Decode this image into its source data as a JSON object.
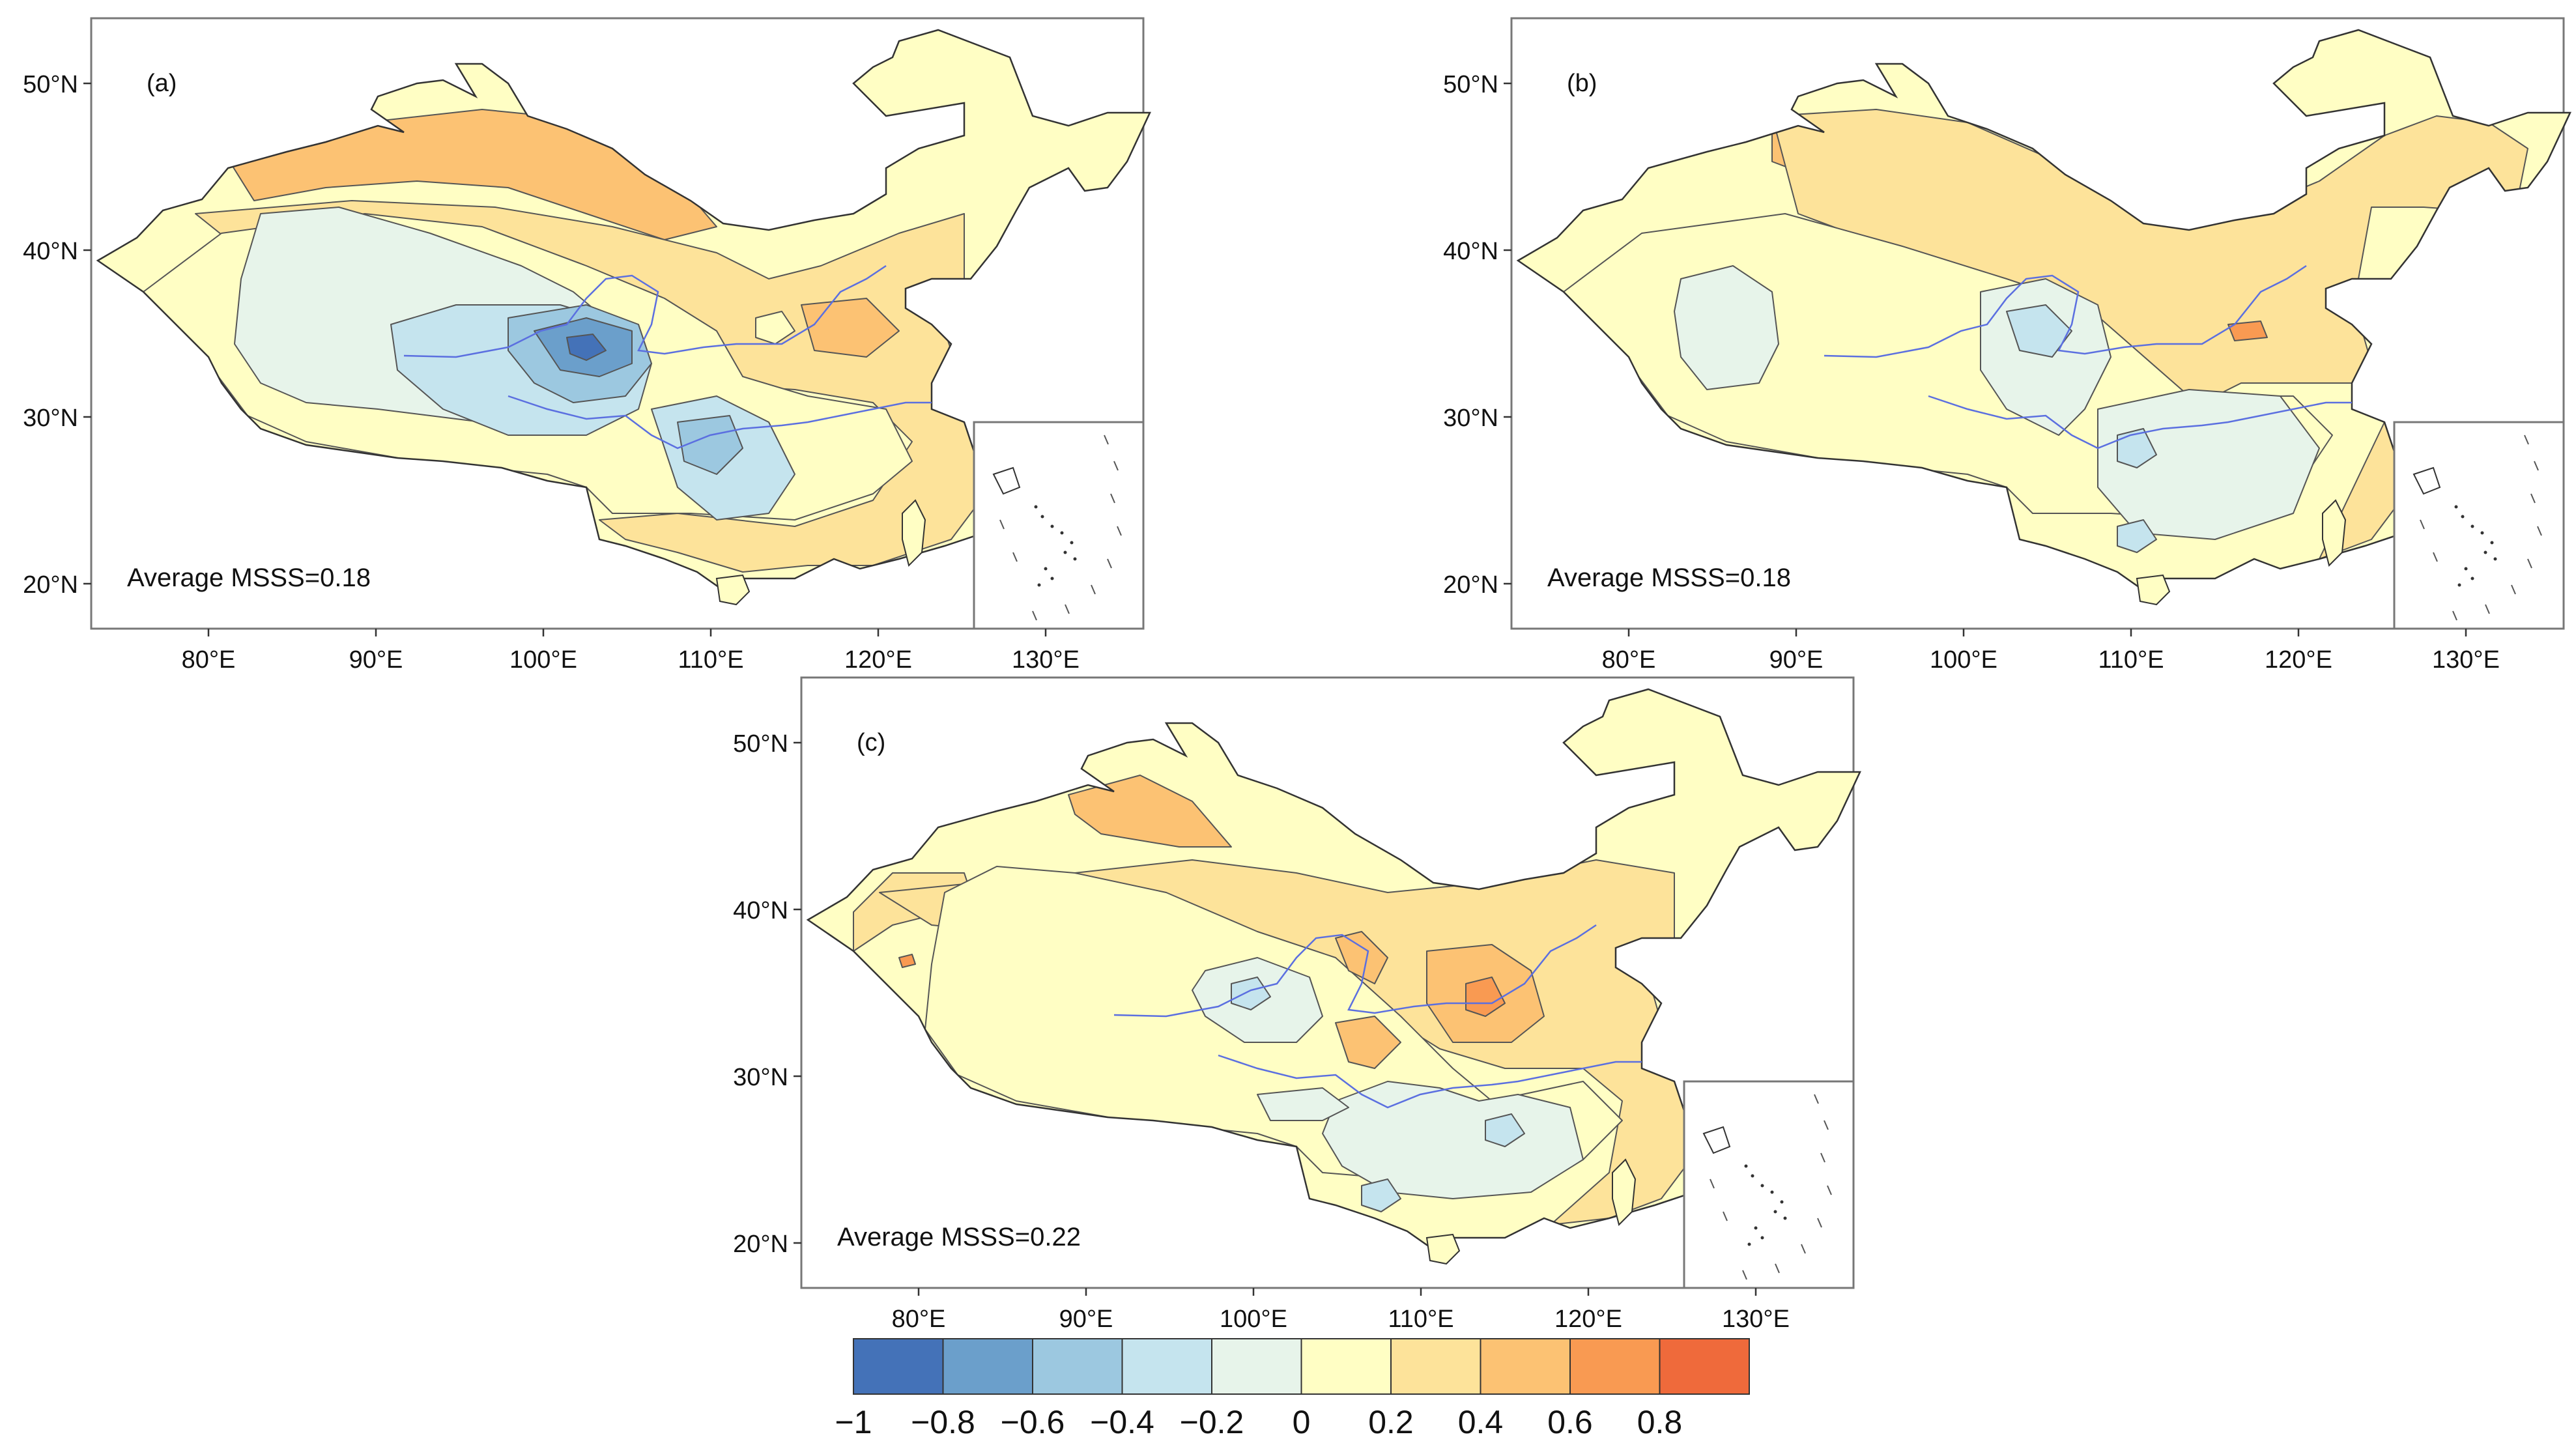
{
  "panels": [
    {
      "label": "(a)",
      "stat": "Average MSSS=0.18",
      "lon_ticks": [
        "80°E",
        "90°E",
        "100°E",
        "110°E",
        "120°E",
        "130°E"
      ],
      "lat_ticks": [
        "50°N",
        "40°N",
        "30°N",
        "20°N"
      ],
      "fill_level": 0
    },
    {
      "label": "(b)",
      "stat": "Average MSSS=0.18",
      "lon_ticks": [
        "80°E",
        "90°E",
        "100°E",
        "110°E",
        "120°E",
        "130°E"
      ],
      "lat_ticks": [
        "50°N",
        "40°N",
        "30°N",
        "20°N"
      ],
      "fill_level": 1
    },
    {
      "label": "(c)",
      "stat": "Average MSSS=0.22",
      "lon_ticks": [
        "80°E",
        "90°E",
        "100°E",
        "110°E",
        "120°E",
        "130°E"
      ],
      "lat_ticks": [
        "50°N",
        "40°N",
        "30°N",
        "20°N"
      ],
      "fill_level": 2
    }
  ],
  "colorbar": {
    "colors": [
      "#4472b8",
      "#6b9fcb",
      "#9cc8e0",
      "#c5e4ee",
      "#e7f4ea",
      "#fffec4",
      "#fde39a",
      "#fcc273",
      "#f99a52",
      "#ef6a3b"
    ],
    "tick_labels": [
      "−1",
      "−0.8",
      "−0.6",
      "−0.4",
      "−0.2",
      "0",
      "0.2",
      "0.4",
      "0.6",
      "0.8"
    ]
  },
  "colors": {
    "river": "#5b6fe0",
    "contour": "#555555",
    "frame": "#777777"
  }
}
